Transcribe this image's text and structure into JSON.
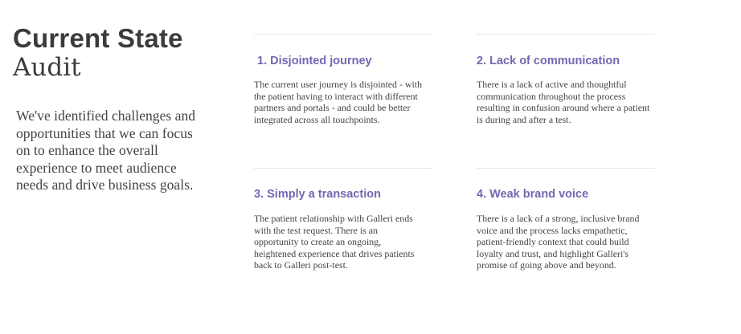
{
  "title": {
    "line1": "Current State",
    "line2": "Audit"
  },
  "intro": "We've identified challenges and opportunities that we can focus on to enhance the overall experience to meet audience needs and drive business goals.",
  "cards": [
    {
      "heading": "1. Disjointed journey",
      "body": "The current user journey is disjointed - with the patient having to interact with different partners and portals - and could be better integrated across all touchpoints."
    },
    {
      "heading": "2. Lack of communication",
      "body": "There is a lack of active and thoughtful communication throughout the process resulting in confusion around where a patient is during and after a test."
    },
    {
      "heading": "3. Simply a transaction",
      "body": "The patient relationship with Galleri ends with the test request. There is an opportunity to create an ongoing, heightened experience that drives patients back to Galleri post-test."
    },
    {
      "heading": "4. Weak brand voice",
      "body": "There is a lack of a strong, inclusive brand voice and the process lacks empathetic, patient-friendly context that could build loyalty and trust, and highlight Galleri's promise of going above and beyond."
    }
  ],
  "colors": {
    "heading": "#7466b2",
    "rule": "#dde6ef",
    "text": "#444444"
  }
}
